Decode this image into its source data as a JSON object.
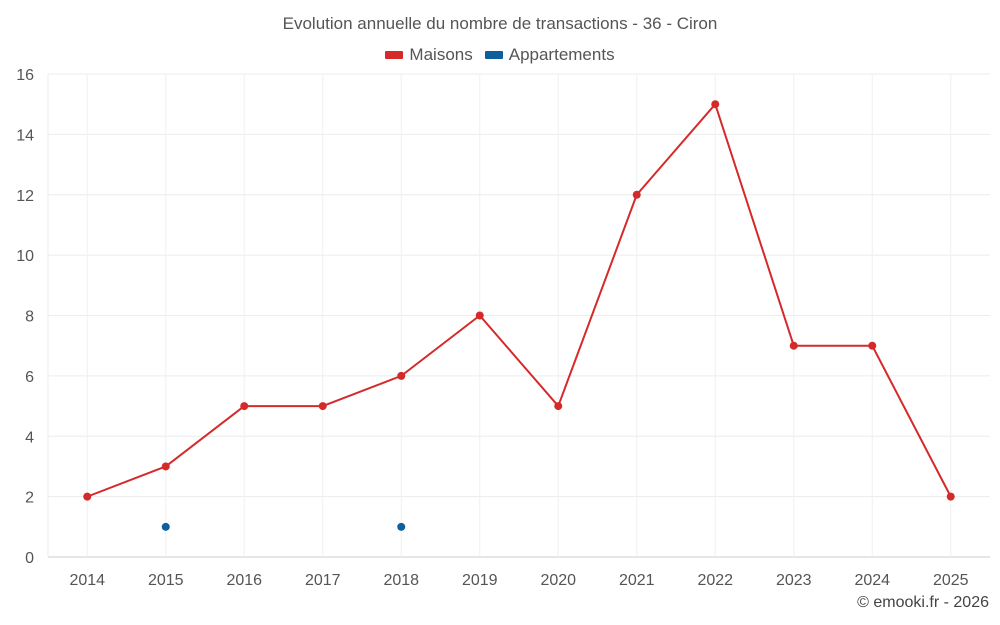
{
  "chart_data": {
    "type": "line",
    "title": "Evolution annuelle du nombre de transactions - 36 - Ciron",
    "xlabel": "",
    "ylabel": "",
    "categories": [
      "2014",
      "2015",
      "2016",
      "2017",
      "2018",
      "2019",
      "2020",
      "2021",
      "2022",
      "2023",
      "2024",
      "2025"
    ],
    "ylim": [
      0,
      16
    ],
    "yticks": [
      0,
      2,
      4,
      6,
      8,
      10,
      12,
      14,
      16
    ],
    "grid": true,
    "legend_position": "top-center",
    "series": [
      {
        "name": "Maisons",
        "color": "#d42a2a",
        "values": [
          2,
          3,
          5,
          5,
          6,
          8,
          5,
          12,
          15,
          7,
          7,
          2
        ]
      },
      {
        "name": "Appartements",
        "color": "#0d5f9e",
        "values": [
          null,
          1,
          null,
          null,
          1,
          null,
          null,
          null,
          null,
          null,
          null,
          null
        ]
      }
    ]
  },
  "credit": "© emooki.fr - 2026"
}
